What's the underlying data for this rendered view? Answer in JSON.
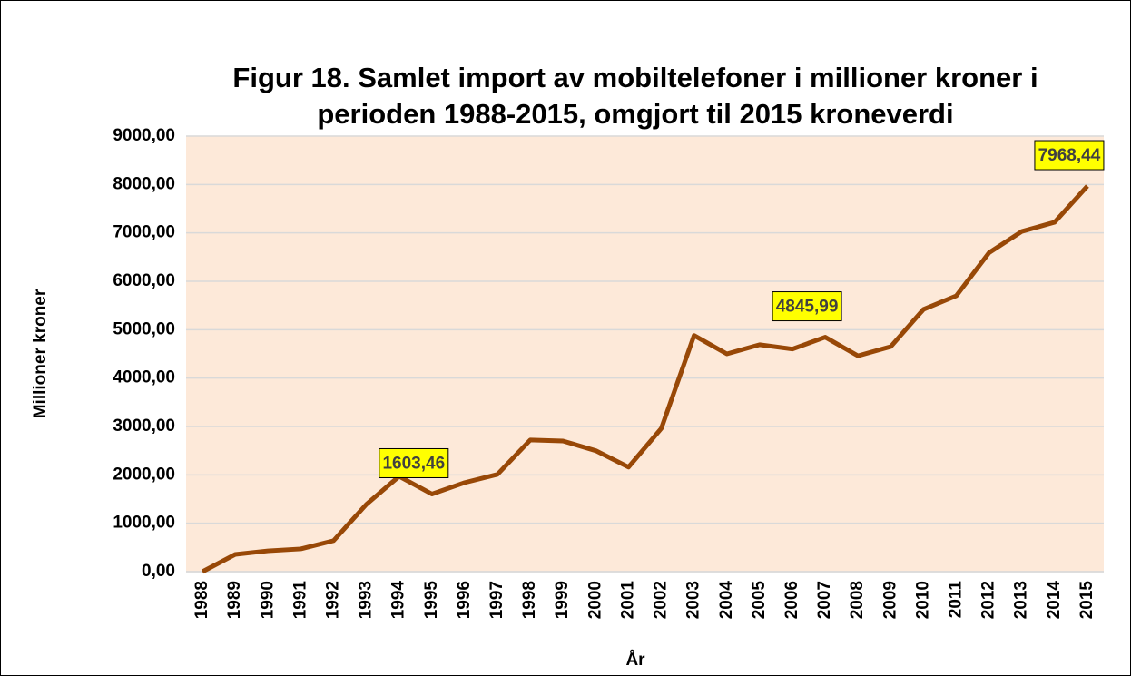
{
  "chart_data": {
    "type": "line",
    "title": [
      "Figur 18. Samlet import av mobiltelefoner i millioner kroner i",
      "perioden 1988-2015, omgjort til 2015 kroneverdi"
    ],
    "x_label": "År",
    "y_label": "Millioner kroner",
    "categories": [
      "1988",
      "1989",
      "1990",
      "1991",
      "1992",
      "1993",
      "1994",
      "1995",
      "1996",
      "1997",
      "1998",
      "1999",
      "2000",
      "2001",
      "2002",
      "2003",
      "2004",
      "2005",
      "2006",
      "2007",
      "2008",
      "2009",
      "2010",
      "2011",
      "2012",
      "2013",
      "2014",
      "2015"
    ],
    "series": [
      {
        "name": "Samlet import",
        "color": "#984807",
        "values": [
          0,
          356,
          430,
          470,
          640,
          1390,
          1970,
          1603.46,
          1840,
          2010,
          2720,
          2700,
          2500,
          2160,
          2960,
          4880,
          4500,
          4690,
          4600,
          4845.99,
          4460,
          4650,
          5420,
          5700,
          6590,
          7030,
          7220,
          7968.44
        ],
        "value_labels": [
          null,
          null,
          null,
          null,
          null,
          null,
          null,
          "1603,46",
          null,
          null,
          null,
          null,
          null,
          null,
          null,
          null,
          null,
          null,
          null,
          "4845,99",
          null,
          null,
          null,
          null,
          null,
          null,
          null,
          "7968,44"
        ]
      }
    ],
    "ylim": [
      0,
      9000
    ],
    "yticks": [
      {
        "value": 0,
        "label": "0,00"
      },
      {
        "value": 1000,
        "label": "1000,00"
      },
      {
        "value": 2000,
        "label": "2000,00"
      },
      {
        "value": 3000,
        "label": "3000,00"
      },
      {
        "value": 4000,
        "label": "4000,00"
      },
      {
        "value": 5000,
        "label": "5000,00"
      },
      {
        "value": 6000,
        "label": "6000,00"
      },
      {
        "value": 7000,
        "label": "7000,00"
      },
      {
        "value": 8000,
        "label": "8000,00"
      },
      {
        "value": 9000,
        "label": "9000,00"
      }
    ],
    "grid": true,
    "plot_background": "#fde9d9",
    "label_background": "#ffff00"
  }
}
